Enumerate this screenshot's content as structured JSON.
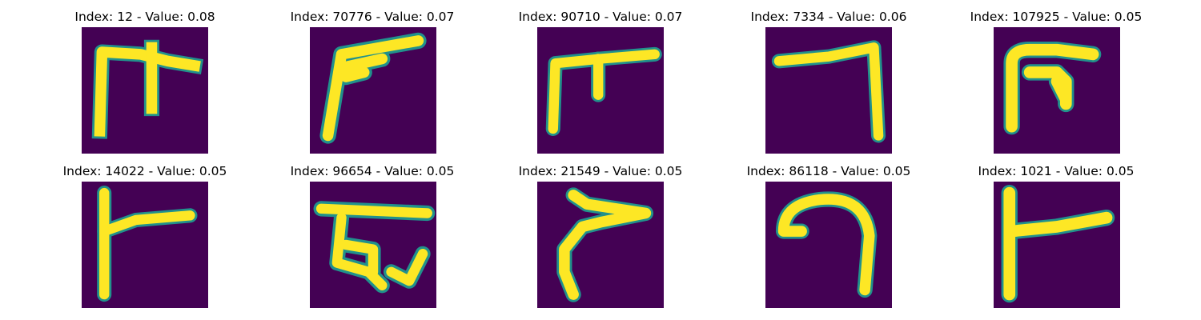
{
  "figure": {
    "colormap": "viridis",
    "background_color": "#440154",
    "stroke_color": "#fde725",
    "edge_color": "#21918c"
  },
  "panels": [
    {
      "title": "Index: 12 - Value: 0.08",
      "glyph": "glyph-l-with-pillar"
    },
    {
      "title": "Index: 70776 - Value: 0.07",
      "glyph": "glyph-diagonal-flag"
    },
    {
      "title": "Index: 90710 - Value: 0.07",
      "glyph": "glyph-l-with-stub"
    },
    {
      "title": "Index: 7334 - Value: 0.06",
      "glyph": "glyph-reverse-seven"
    },
    {
      "title": "Index: 107925 - Value: 0.05",
      "glyph": "glyph-hook-with-drop"
    },
    {
      "title": "Index: 14022 - Value: 0.05",
      "glyph": "glyph-tee-right"
    },
    {
      "title": "Index: 96654 - Value: 0.05",
      "glyph": "glyph-loop-e"
    },
    {
      "title": "Index: 21549 - Value: 0.05",
      "glyph": "glyph-swoop"
    },
    {
      "title": "Index: 86118 - Value: 0.05",
      "glyph": "glyph-hook-curl"
    },
    {
      "title": "Index: 1021 - Value: 0.05",
      "glyph": "glyph-tee-right-wide"
    }
  ]
}
